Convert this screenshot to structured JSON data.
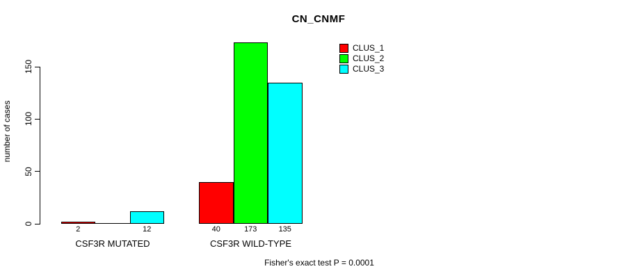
{
  "chart_data": {
    "type": "bar",
    "title": "CN_CNMF",
    "ylabel": "number of cases",
    "xlabel": "",
    "categories": [
      "CSF3R MUTATED",
      "CSF3R WILD-TYPE"
    ],
    "series": [
      {
        "name": "CLUS_1",
        "color": "#ff0000",
        "values": [
          2,
          40
        ]
      },
      {
        "name": "CLUS_2",
        "color": "#00ff00",
        "values": [
          0,
          173
        ]
      },
      {
        "name": "CLUS_3",
        "color": "#00ffff",
        "values": [
          12,
          135
        ]
      }
    ],
    "bar_value_labels": [
      [
        "2",
        "",
        "12"
      ],
      [
        "40",
        "173",
        "135"
      ]
    ],
    "yticks": [
      0,
      50,
      100,
      150
    ],
    "ylim": [
      0,
      180
    ],
    "grid": false,
    "legend_position": "top-right",
    "annotation": "Fisher's exact test P = 0.0001"
  }
}
